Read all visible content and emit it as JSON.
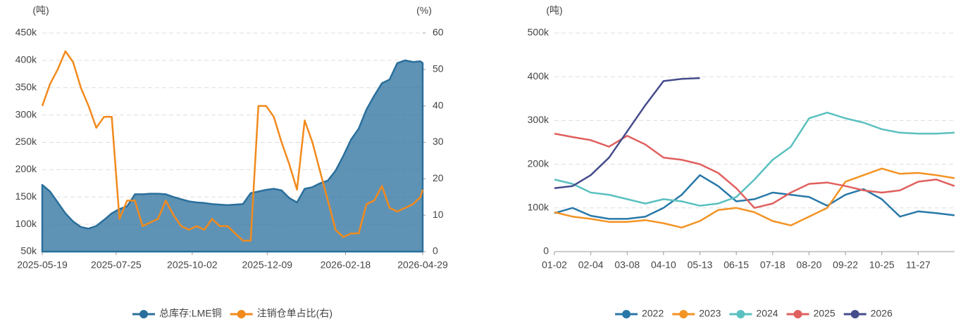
{
  "chart_data": [
    {
      "type": "area",
      "y_unit": "(吨)",
      "y2_unit": "(%)",
      "x": [
        "2025-05-19",
        "2025-05-26",
        "2025-06-02",
        "2025-06-09",
        "2025-06-16",
        "2025-06-23",
        "2025-06-30",
        "2025-07-07",
        "2025-07-14",
        "2025-07-21",
        "2025-07-28",
        "2025-08-04",
        "2025-08-11",
        "2025-08-18",
        "2025-08-25",
        "2025-09-01",
        "2025-09-08",
        "2025-09-15",
        "2025-09-22",
        "2025-09-29",
        "2025-10-06",
        "2025-10-13",
        "2025-10-20",
        "2025-10-27",
        "2025-11-03",
        "2025-11-10",
        "2025-11-17",
        "2025-11-24",
        "2025-12-01",
        "2025-12-08",
        "2025-12-15",
        "2025-12-22",
        "2025-12-29",
        "2026-01-05",
        "2026-01-12",
        "2026-01-19",
        "2026-01-26",
        "2026-02-02",
        "2026-02-09",
        "2026-02-16",
        "2026-02-23",
        "2026-03-02",
        "2026-03-09",
        "2026-03-16",
        "2026-03-23",
        "2026-03-30",
        "2026-04-06",
        "2026-04-13",
        "2026-04-20",
        "2026-04-27",
        "2026-04-29"
      ],
      "series": [
        {
          "name": "总库存:LME铜",
          "color": "#2a6f9c",
          "area": true,
          "values": [
            172000,
            160000,
            140000,
            120000,
            105000,
            95000,
            92000,
            97000,
            108000,
            120000,
            128000,
            133000,
            155000,
            155000,
            156000,
            156000,
            155000,
            150000,
            146000,
            142000,
            140000,
            139000,
            137000,
            136000,
            135000,
            136000,
            137000,
            157000,
            160000,
            163000,
            165000,
            162000,
            148000,
            140000,
            165000,
            168000,
            175000,
            180000,
            198000,
            225000,
            255000,
            275000,
            310000,
            335000,
            358000,
            365000,
            395000,
            400000,
            397000,
            398000,
            395000
          ]
        },
        {
          "name": "注销仓单占比(右)",
          "color": "#f28a1c",
          "axis": "y2",
          "values": [
            40,
            46,
            50,
            55,
            52,
            45,
            40,
            34,
            37,
            37,
            9,
            14,
            14,
            7,
            8,
            9,
            14,
            10,
            7,
            6,
            7,
            6,
            9,
            7,
            7,
            5,
            3,
            3,
            40,
            40,
            37,
            30,
            24,
            17,
            36,
            30,
            22,
            14,
            6,
            4,
            5,
            5,
            13,
            14,
            18,
            12,
            11,
            12,
            13,
            15,
            17
          ]
        }
      ],
      "xlim": [
        "2025-05-19",
        "2026-04-29"
      ],
      "xticks": [
        "2025-05-19",
        "2025-07-25",
        "2025-10-02",
        "2025-12-09",
        "2026-02-18",
        "2026-04-29"
      ],
      "ylim": [
        50000,
        450000
      ],
      "yticks": [
        {
          "value": 50000,
          "label": "50k"
        },
        {
          "value": 100000,
          "label": "100k"
        },
        {
          "value": 150000,
          "label": "150k"
        },
        {
          "value": 200000,
          "label": "200k"
        },
        {
          "value": 250000,
          "label": "250k"
        },
        {
          "value": 300000,
          "label": "300k"
        },
        {
          "value": 350000,
          "label": "350k"
        },
        {
          "value": 400000,
          "label": "400k"
        },
        {
          "value": 450000,
          "label": "450k"
        }
      ],
      "y2lim": [
        0,
        60
      ],
      "y2ticks": [
        0,
        10,
        20,
        30,
        40,
        50,
        60
      ],
      "grid": true
    },
    {
      "type": "line",
      "y_unit": "(吨)",
      "categories": [
        "01-02",
        null,
        "02-04",
        null,
        "03-08",
        null,
        "04-10",
        null,
        "05-13",
        null,
        "06-15",
        null,
        "07-18",
        null,
        "08-20",
        null,
        "09-22",
        null,
        "10-25",
        null,
        "11-27",
        null,
        null
      ],
      "series": [
        {
          "name": "2022",
          "color": "#2878a8",
          "values": [
            88000,
            100000,
            82000,
            75000,
            75000,
            80000,
            100000,
            130000,
            175000,
            150000,
            115000,
            120000,
            135000,
            130000,
            125000,
            105000,
            130000,
            143000,
            120000,
            80000,
            92000,
            88000,
            83000
          ]
        },
        {
          "name": "2023",
          "color": "#f39323",
          "values": [
            90000,
            80000,
            75000,
            68000,
            68000,
            72000,
            65000,
            55000,
            70000,
            95000,
            100000,
            90000,
            70000,
            60000,
            80000,
            100000,
            160000,
            175000,
            190000,
            178000,
            180000,
            175000,
            168000
          ]
        },
        {
          "name": "2024",
          "color": "#5bc0c0",
          "values": [
            165000,
            155000,
            135000,
            130000,
            120000,
            110000,
            120000,
            115000,
            105000,
            110000,
            125000,
            165000,
            210000,
            240000,
            305000,
            318000,
            305000,
            295000,
            280000,
            272000,
            270000,
            270000,
            272000
          ]
        },
        {
          "name": "2025",
          "color": "#e0605e",
          "values": [
            270000,
            262000,
            255000,
            240000,
            265000,
            245000,
            215000,
            210000,
            200000,
            180000,
            145000,
            100000,
            110000,
            135000,
            155000,
            158000,
            150000,
            140000,
            135000,
            140000,
            160000,
            165000,
            150000
          ]
        },
        {
          "name": "2026",
          "color": "#454c8c",
          "values": [
            145000,
            150000,
            175000,
            215000,
            275000,
            335000,
            390000,
            395000,
            397000,
            null,
            null,
            null,
            null,
            null,
            null,
            null,
            null,
            null,
            null,
            null,
            null,
            null,
            null
          ]
        }
      ],
      "ylim": [
        0,
        500000
      ],
      "yticks": [
        0,
        {
          "value": 100000,
          "label": "100k"
        },
        {
          "value": 200000,
          "label": "200k"
        },
        {
          "value": 300000,
          "label": "300k"
        },
        {
          "value": 400000,
          "label": "400k"
        },
        {
          "value": 500000,
          "label": "500k"
        }
      ],
      "grid": true
    }
  ]
}
